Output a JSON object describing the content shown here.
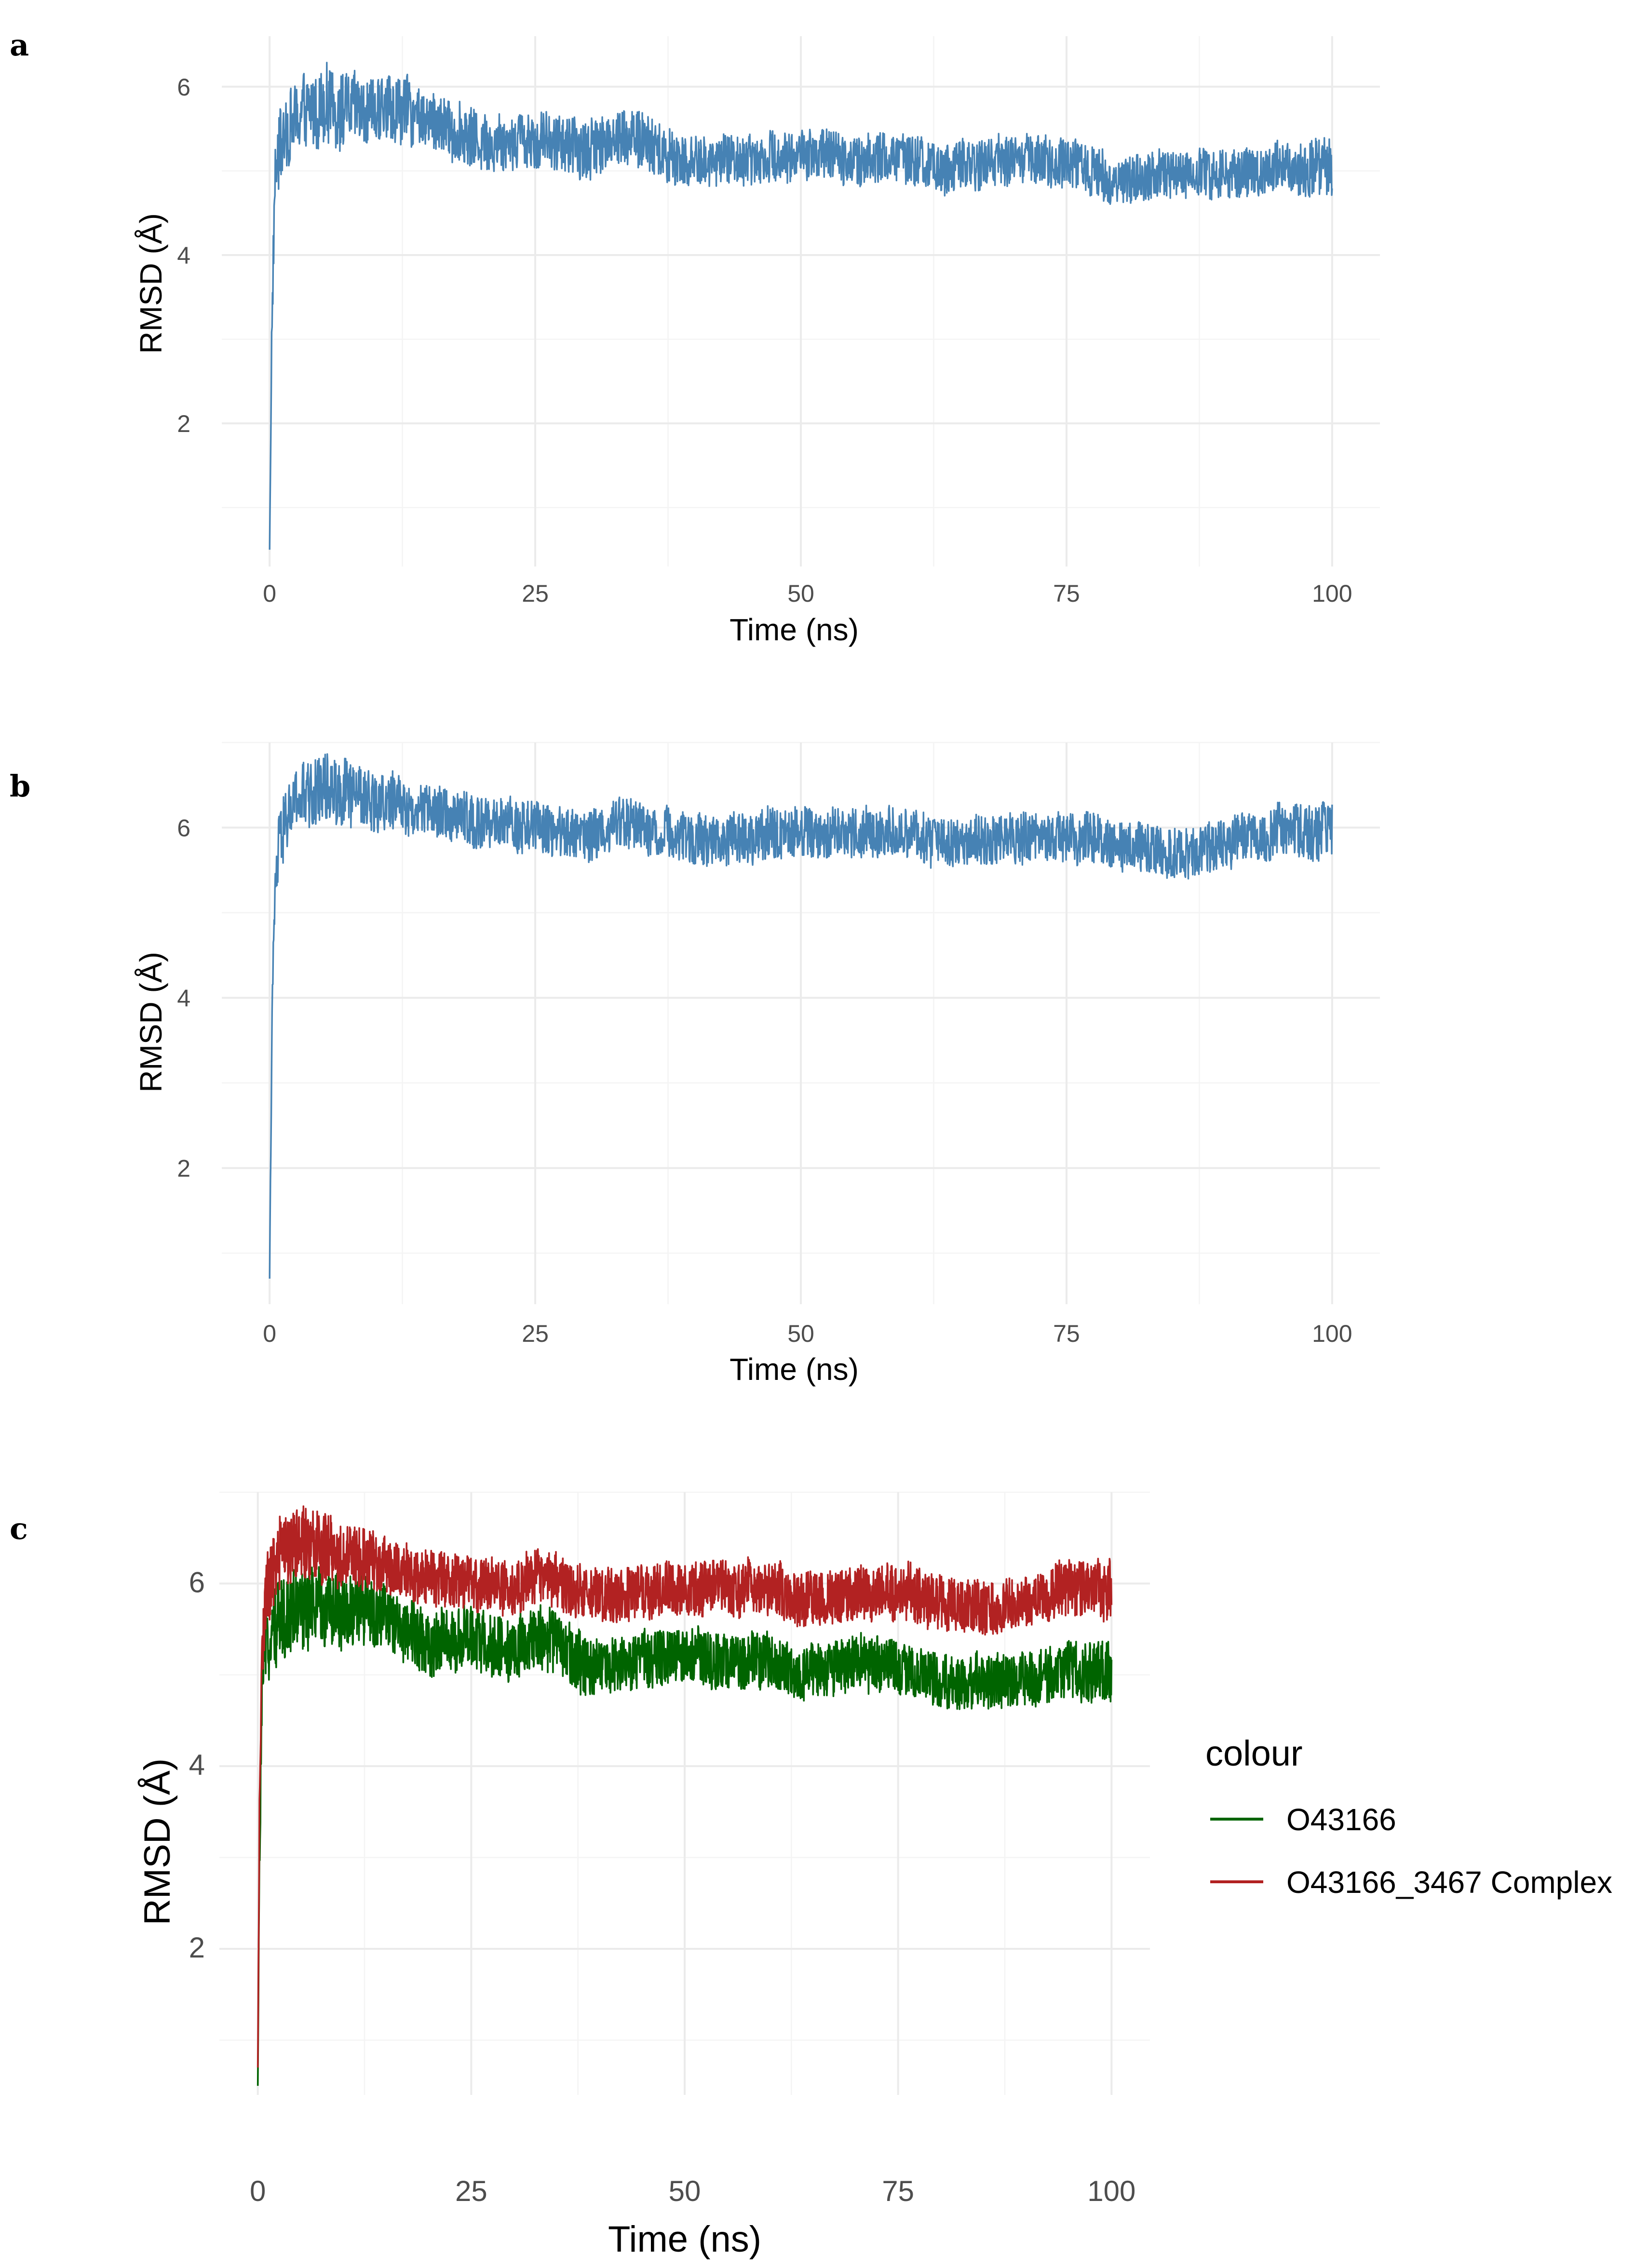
{
  "chart_data": [
    {
      "panel": "a",
      "type": "line",
      "xlabel": "Time (ns)",
      "ylabel": "RMSD (Å)",
      "xlim": [
        -4.5,
        104.5
      ],
      "ylim": [
        0.3,
        6.6
      ],
      "xticks": [
        0,
        25,
        50,
        75,
        100
      ],
      "yticks": [
        2,
        4,
        6
      ],
      "series": [
        {
          "name": "RMSD",
          "color": "#4682b4",
          "x": [
            0,
            0.2,
            0.5,
            1,
            2,
            3,
            4,
            5,
            7,
            10,
            12,
            15,
            20,
            25,
            30,
            33,
            35,
            38,
            40,
            45,
            50,
            55,
            60,
            63,
            65,
            70,
            75,
            80,
            85,
            90,
            95,
            100
          ],
          "mean": [
            0.5,
            3.0,
            4.9,
            5.3,
            5.55,
            5.65,
            5.7,
            5.75,
            5.75,
            5.7,
            5.75,
            5.6,
            5.35,
            5.4,
            5.25,
            5.45,
            5.35,
            5.15,
            5.1,
            5.15,
            5.2,
            5.15,
            5.15,
            5.0,
            5.05,
            5.15,
            5.1,
            4.9,
            4.95,
            4.95,
            5.05,
            5.05
          ],
          "band": [
            0.0,
            0.3,
            0.35,
            0.45,
            0.45,
            0.45,
            0.45,
            0.45,
            0.45,
            0.4,
            0.4,
            0.35,
            0.35,
            0.35,
            0.35,
            0.35,
            0.35,
            0.35,
            0.3,
            0.3,
            0.3,
            0.3,
            0.3,
            0.3,
            0.3,
            0.3,
            0.3,
            0.3,
            0.3,
            0.3,
            0.3,
            0.35
          ]
        }
      ]
    },
    {
      "panel": "b",
      "type": "line",
      "xlabel": "Time (ns)",
      "ylabel": "RMSD (Å)",
      "xlim": [
        -4.5,
        104.5
      ],
      "ylim": [
        0.4,
        7.0
      ],
      "xticks": [
        0,
        25,
        50,
        75,
        100
      ],
      "yticks": [
        2,
        4,
        6
      ],
      "series": [
        {
          "name": "RMSD",
          "color": "#4682b4",
          "x": [
            0,
            0.2,
            0.5,
            1,
            2,
            3,
            4,
            5,
            7,
            10,
            12,
            15,
            20,
            25,
            30,
            33,
            35,
            38,
            40,
            45,
            50,
            55,
            60,
            63,
            65,
            70,
            75,
            80,
            85,
            90,
            95,
            100
          ],
          "mean": [
            0.7,
            3.5,
            5.2,
            5.9,
            6.2,
            6.35,
            6.4,
            6.45,
            6.4,
            6.3,
            6.3,
            6.2,
            6.05,
            6.0,
            5.9,
            6.1,
            6.0,
            5.9,
            5.85,
            5.9,
            5.95,
            5.95,
            5.95,
            5.8,
            5.85,
            5.9,
            5.9,
            5.8,
            5.7,
            5.8,
            5.95,
            5.95
          ],
          "band": [
            0.0,
            0.3,
            0.35,
            0.4,
            0.4,
            0.4,
            0.4,
            0.4,
            0.4,
            0.35,
            0.35,
            0.3,
            0.3,
            0.3,
            0.3,
            0.3,
            0.3,
            0.3,
            0.3,
            0.3,
            0.3,
            0.3,
            0.3,
            0.3,
            0.3,
            0.3,
            0.3,
            0.3,
            0.3,
            0.3,
            0.3,
            0.35
          ]
        }
      ]
    },
    {
      "panel": "c",
      "type": "line",
      "xlabel": "Time (ns)",
      "ylabel": "RMSD (Å)",
      "xlim": [
        -4.5,
        104.5
      ],
      "ylim": [
        0.4,
        7.0
      ],
      "xticks": [
        0,
        25,
        50,
        75,
        100
      ],
      "yticks": [
        2,
        4,
        6
      ],
      "legend_title": "colour",
      "legend_position": "right",
      "series": [
        {
          "name": "O43166",
          "color": "#006400",
          "x": [
            0,
            0.2,
            0.5,
            1,
            2,
            3,
            4,
            5,
            7,
            10,
            12,
            15,
            20,
            25,
            30,
            33,
            35,
            38,
            40,
            45,
            50,
            55,
            60,
            63,
            65,
            70,
            75,
            80,
            85,
            90,
            95,
            100
          ],
          "mean": [
            0.5,
            3.0,
            4.9,
            5.3,
            5.55,
            5.65,
            5.7,
            5.75,
            5.75,
            5.7,
            5.75,
            5.6,
            5.35,
            5.4,
            5.25,
            5.45,
            5.35,
            5.15,
            5.1,
            5.15,
            5.2,
            5.15,
            5.15,
            5.0,
            5.05,
            5.15,
            5.1,
            4.9,
            4.95,
            4.95,
            5.05,
            5.05
          ],
          "band": [
            0.0,
            0.3,
            0.35,
            0.45,
            0.45,
            0.45,
            0.45,
            0.45,
            0.45,
            0.4,
            0.4,
            0.35,
            0.35,
            0.35,
            0.35,
            0.35,
            0.35,
            0.35,
            0.3,
            0.3,
            0.3,
            0.3,
            0.3,
            0.3,
            0.3,
            0.3,
            0.3,
            0.3,
            0.3,
            0.3,
            0.3,
            0.35
          ]
        },
        {
          "name": "O43166_3467 Complex",
          "color": "#b22222",
          "x": [
            0,
            0.2,
            0.5,
            1,
            2,
            3,
            4,
            5,
            7,
            10,
            12,
            15,
            20,
            25,
            30,
            33,
            35,
            38,
            40,
            45,
            50,
            55,
            60,
            63,
            65,
            70,
            75,
            80,
            85,
            90,
            95,
            100
          ],
          "mean": [
            0.7,
            3.5,
            5.2,
            5.9,
            6.2,
            6.35,
            6.4,
            6.45,
            6.4,
            6.3,
            6.3,
            6.2,
            6.05,
            6.0,
            5.9,
            6.1,
            6.0,
            5.9,
            5.85,
            5.9,
            5.95,
            5.95,
            5.95,
            5.8,
            5.85,
            5.9,
            5.9,
            5.8,
            5.7,
            5.8,
            5.95,
            5.95
          ],
          "band": [
            0.0,
            0.3,
            0.35,
            0.4,
            0.4,
            0.4,
            0.4,
            0.4,
            0.4,
            0.35,
            0.35,
            0.3,
            0.3,
            0.3,
            0.3,
            0.3,
            0.3,
            0.3,
            0.3,
            0.3,
            0.3,
            0.3,
            0.3,
            0.3,
            0.3,
            0.3,
            0.3,
            0.3,
            0.3,
            0.3,
            0.3,
            0.35
          ]
        }
      ]
    }
  ]
}
